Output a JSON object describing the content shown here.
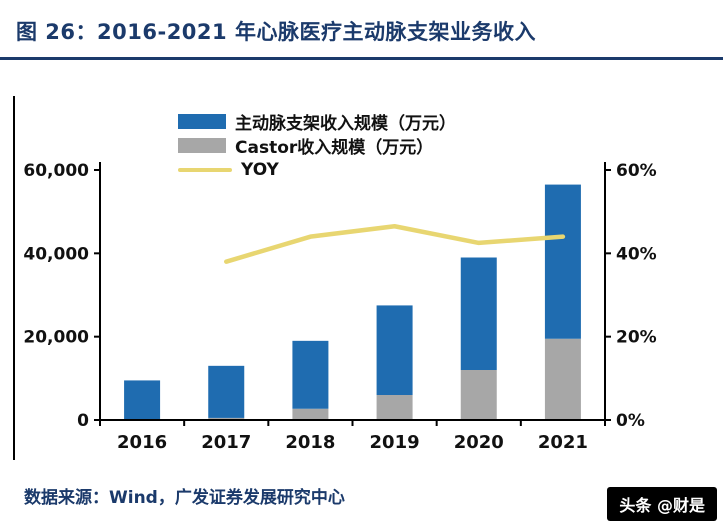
{
  "page": {
    "title": "图 26：2016-2021 年心脉医疗主动脉支架业务收入",
    "source": "数据来源：Wind，广发证券发展研究中心",
    "watermark": "头条 @财是"
  },
  "colors": {
    "title_navy": "#1b3a6b",
    "bar_blue": "#1f6cb0",
    "bar_gray": "#a7a7a7",
    "line_yellow": "#e8d671",
    "axis_black": "#000000"
  },
  "chart_data": {
    "type": "bar",
    "subtype": "stacked bars with line on secondary axis",
    "categories": [
      "2016",
      "2017",
      "2018",
      "2019",
      "2020",
      "2021"
    ],
    "series": [
      {
        "name": "主动脉支架收入规模（万元）",
        "type": "bar",
        "axis": "left",
        "values": [
          9500,
          13000,
          19000,
          27500,
          39000,
          56500
        ]
      },
      {
        "name": "Castor收入规模（万元）",
        "type": "bar",
        "axis": "left",
        "values": [
          0,
          500,
          2700,
          6000,
          12000,
          19500
        ]
      },
      {
        "name": "YOY",
        "type": "line",
        "axis": "right",
        "values": [
          null,
          38,
          44,
          46.5,
          42.5,
          44
        ]
      }
    ],
    "left_axis": {
      "min": 0,
      "max": 60000,
      "ticks": [
        "0",
        "20,000",
        "40,000",
        "60,000"
      ]
    },
    "right_axis": {
      "min": 0,
      "max": 60,
      "ticks": [
        "0%",
        "20%",
        "40%",
        "60%"
      ]
    },
    "legend_position": "top",
    "grid": false
  }
}
